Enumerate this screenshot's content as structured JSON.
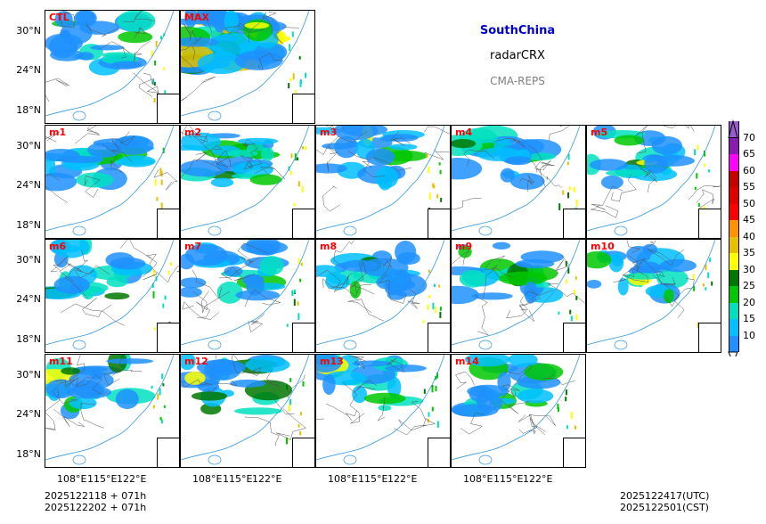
{
  "header": {
    "region": "SouthChina",
    "variable": "radarCRX",
    "system": "CMA-REPS",
    "region_color": "#0000cc",
    "system_color": "#808080"
  },
  "panels": [
    {
      "label": "CTL"
    },
    {
      "label": "MAX"
    },
    {
      "label": "m1"
    },
    {
      "label": "m2"
    },
    {
      "label": "m3"
    },
    {
      "label": "m4"
    },
    {
      "label": "m5"
    },
    {
      "label": "m6"
    },
    {
      "label": "m7"
    },
    {
      "label": "m8"
    },
    {
      "label": "m9"
    },
    {
      "label": "m10"
    },
    {
      "label": "m11"
    },
    {
      "label": "m12"
    },
    {
      "label": "m13"
    },
    {
      "label": "m14"
    }
  ],
  "axes": {
    "lat_ticks": [
      "30°N",
      "24°N",
      "18°N"
    ],
    "lon_ticks": [
      "108°E",
      "115°E",
      "122°E"
    ]
  },
  "colorbar": {
    "levels": [
      "70",
      "65",
      "60",
      "55",
      "50",
      "45",
      "40",
      "35",
      "30",
      "25",
      "20",
      "15",
      "10"
    ],
    "colors": [
      "#9b59d0",
      "#8a1ab0",
      "#ff00ff",
      "#c80000",
      "#e00000",
      "#ff0000",
      "#ff9000",
      "#e8c000",
      "#ffff00",
      "#007800",
      "#00c800",
      "#00e0c0",
      "#00c0ff",
      "#1e90ff"
    ]
  },
  "footer": {
    "init_utc": "2025122118  +  071h",
    "init_cst": "2025122202  +  071h",
    "valid_utc": "2025122417(UTC)",
    "valid_cst": "2025122501(CST)"
  }
}
